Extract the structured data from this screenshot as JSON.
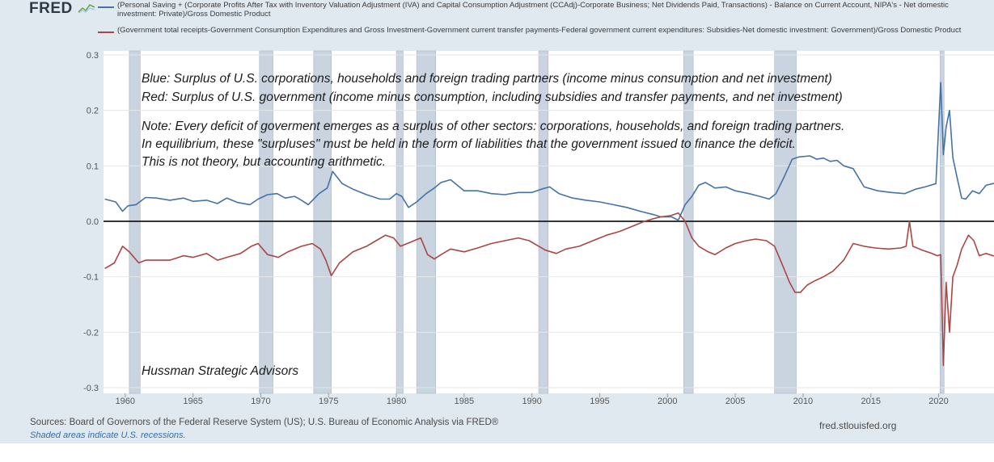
{
  "header": {
    "logo_text": "FRED",
    "logo_icon": "chart-mark-icon"
  },
  "legend": [
    {
      "color": "#4572a7",
      "text": "(Personal Saving + (Corporate Profits After Tax with Inventory Valuation Adjustment (IVA) and Capital Consumption Adjustment (CCAdj)-Corporate Business; Net Dividends Paid, Transactions) - Balance on Current Account, NIPA's - Net domestic investment: Private)/Gross Domestic Product"
    },
    {
      "color": "#aa4643",
      "text": "(Government total receipts-Government Consumption Expenditures and Gross Investment-Government current transfer payments-Federal government current expenditures: Subsidies-Net domestic investment: Government)/Gross Domestic Product"
    }
  ],
  "annotations": {
    "blue_note": "Blue: Surplus of U.S. corporations, households and foreign trading partners (income minus consumption and net investment)",
    "red_note": "Red: Surplus of U.S. government (income minus consumption, including subsidies and transfer payments, and net investment)",
    "note_line1": "Note: Every deficit of goverment emerges as a surplus of other sectors: corporations, households, and foreign trading partners.",
    "note_line2": "In equilibrium, these \"surpluses\" must be held in the form of liabilities that the government issued to finance the deficit.",
    "note_line3": "This is not theory, but accounting arithmetic.",
    "credit": "Hussman Strategic Advisors"
  },
  "footer": {
    "sources": "Sources: Board of Governors of the Federal Reserve System (US); U.S. Bureau of Economic Analysis via FRED®",
    "shaded": "Shaded areas indicate U.S. recessions.",
    "url": "fred.stlouisfed.org"
  },
  "chart_data": {
    "type": "line",
    "xlim": [
      1958.4,
      2024.8
    ],
    "ylim": [
      -0.3,
      0.3
    ],
    "ytick_values": [
      0.3,
      0.2,
      0.1,
      0.0,
      -0.1,
      -0.2,
      -0.3
    ],
    "ytick_labels": [
      "0.3",
      "0.2",
      "0.1",
      "0.0",
      "-0.1",
      "-0.2",
      "-0.3"
    ],
    "xtick_values": [
      1960,
      1965,
      1970,
      1975,
      1980,
      1985,
      1990,
      1995,
      2000,
      2005,
      2010,
      2015,
      2020
    ],
    "xtick_labels": [
      "1960",
      "1965",
      "1970",
      "1975",
      "1980",
      "1985",
      "1990",
      "1995",
      "2000",
      "2005",
      "2010",
      "2015",
      "2020"
    ],
    "zero_line": 0.0,
    "recessions": [
      [
        1960.3,
        1961.1
      ],
      [
        1969.9,
        1970.9
      ],
      [
        1973.9,
        1975.2
      ],
      [
        1980.0,
        1980.5
      ],
      [
        1981.5,
        1982.9
      ],
      [
        1990.5,
        1991.2
      ],
      [
        2001.2,
        2001.9
      ],
      [
        2007.9,
        2009.5
      ],
      [
        2020.1,
        2020.4
      ]
    ],
    "series": [
      {
        "color": "#4572a7",
        "x": [
          1958.5,
          1959.3,
          1959.8,
          1960.2,
          1960.8,
          1961.5,
          1962.3,
          1963.3,
          1964.3,
          1965.0,
          1966.0,
          1966.8,
          1967.5,
          1968.3,
          1969.2,
          1969.8,
          1970.5,
          1971.2,
          1971.8,
          1972.5,
          1973.0,
          1973.5,
          1974.3,
          1974.9,
          1975.3,
          1976.0,
          1976.8,
          1977.8,
          1978.8,
          1979.5,
          1980.0,
          1980.4,
          1980.9,
          1981.5,
          1982.2,
          1982.8,
          1983.3,
          1984.0,
          1985.0,
          1986.0,
          1987.0,
          1988.0,
          1989.0,
          1990.0,
          1990.7,
          1991.3,
          1992.0,
          1993.0,
          1994.0,
          1995.0,
          1996.0,
          1997.0,
          1998.0,
          1999.0,
          1999.5,
          2000.3,
          2000.8,
          2001.3,
          2001.8,
          2002.3,
          2002.8,
          2003.5,
          2004.3,
          2005.0,
          2006.0,
          2006.8,
          2007.5,
          2008.0,
          2008.6,
          2009.2,
          2009.7,
          2010.5,
          2011.0,
          2011.5,
          2012.0,
          2012.5,
          2013.0,
          2013.7,
          2014.5,
          2015.5,
          2016.5,
          2017.5,
          2018.3,
          2019.0,
          2019.8,
          2020.15,
          2020.35,
          2020.55,
          2020.8,
          2021.05,
          2021.35,
          2021.7,
          2022.0,
          2022.5,
          2023.0,
          2023.5,
          2024.0,
          2024.7
        ],
        "y": [
          0.04,
          0.035,
          0.018,
          0.028,
          0.03,
          0.043,
          0.042,
          0.038,
          0.042,
          0.036,
          0.038,
          0.032,
          0.042,
          0.034,
          0.03,
          0.04,
          0.048,
          0.05,
          0.042,
          0.045,
          0.038,
          0.03,
          0.05,
          0.06,
          0.09,
          0.068,
          0.058,
          0.048,
          0.04,
          0.04,
          0.05,
          0.045,
          0.025,
          0.035,
          0.05,
          0.06,
          0.07,
          0.075,
          0.055,
          0.055,
          0.05,
          0.048,
          0.052,
          0.052,
          0.058,
          0.062,
          0.05,
          0.042,
          0.038,
          0.035,
          0.03,
          0.025,
          0.018,
          0.012,
          0.008,
          0.008,
          0.002,
          0.03,
          0.045,
          0.065,
          0.07,
          0.06,
          0.062,
          0.055,
          0.05,
          0.045,
          0.04,
          0.05,
          0.08,
          0.112,
          0.116,
          0.118,
          0.112,
          0.114,
          0.108,
          0.11,
          0.1,
          0.095,
          0.062,
          0.055,
          0.052,
          0.05,
          0.058,
          0.062,
          0.068,
          0.25,
          0.12,
          0.17,
          0.2,
          0.115,
          0.08,
          0.042,
          0.04,
          0.055,
          0.05,
          0.065,
          0.068,
          0.07
        ]
      },
      {
        "color": "#aa4643",
        "x": [
          1958.5,
          1959.2,
          1959.8,
          1960.3,
          1961.0,
          1961.5,
          1962.3,
          1963.3,
          1964.3,
          1965.0,
          1966.0,
          1966.8,
          1967.5,
          1968.5,
          1969.3,
          1969.8,
          1970.5,
          1971.3,
          1972.0,
          1973.0,
          1973.8,
          1974.4,
          1974.8,
          1975.2,
          1975.8,
          1976.8,
          1977.8,
          1978.5,
          1979.2,
          1979.8,
          1980.3,
          1980.8,
          1981.3,
          1981.8,
          1982.3,
          1982.8,
          1983.3,
          1984.0,
          1985.0,
          1986.0,
          1987.0,
          1988.0,
          1989.0,
          1989.8,
          1990.5,
          1991.0,
          1991.8,
          1992.5,
          1993.5,
          1994.5,
          1995.5,
          1996.5,
          1997.5,
          1998.3,
          1999.0,
          1999.5,
          2000.2,
          2000.8,
          2001.3,
          2001.8,
          2002.3,
          2003.0,
          2003.5,
          2004.3,
          2005.0,
          2005.8,
          2006.5,
          2007.3,
          2007.9,
          2008.5,
          2009.0,
          2009.4,
          2009.8,
          2010.3,
          2010.8,
          2011.5,
          2012.2,
          2013.0,
          2013.7,
          2014.5,
          2015.3,
          2016.3,
          2017.2,
          2017.6,
          2017.85,
          2018.1,
          2018.8,
          2019.5,
          2019.9,
          2020.15,
          2020.35,
          2020.55,
          2020.8,
          2021.05,
          2021.35,
          2021.7,
          2022.2,
          2022.6,
          2023.0,
          2023.5,
          2024.0,
          2024.7
        ],
        "y": [
          -0.085,
          -0.075,
          -0.045,
          -0.055,
          -0.075,
          -0.07,
          -0.07,
          -0.07,
          -0.062,
          -0.065,
          -0.058,
          -0.07,
          -0.065,
          -0.058,
          -0.045,
          -0.04,
          -0.06,
          -0.065,
          -0.055,
          -0.045,
          -0.04,
          -0.05,
          -0.07,
          -0.098,
          -0.075,
          -0.055,
          -0.045,
          -0.035,
          -0.025,
          -0.03,
          -0.045,
          -0.04,
          -0.035,
          -0.03,
          -0.06,
          -0.068,
          -0.06,
          -0.05,
          -0.055,
          -0.048,
          -0.04,
          -0.035,
          -0.03,
          -0.035,
          -0.045,
          -0.052,
          -0.058,
          -0.05,
          -0.045,
          -0.035,
          -0.025,
          -0.018,
          -0.008,
          0.0,
          0.005,
          0.008,
          0.01,
          0.015,
          0.0,
          -0.03,
          -0.045,
          -0.055,
          -0.06,
          -0.048,
          -0.04,
          -0.035,
          -0.032,
          -0.035,
          -0.045,
          -0.08,
          -0.11,
          -0.128,
          -0.128,
          -0.115,
          -0.108,
          -0.1,
          -0.09,
          -0.07,
          -0.04,
          -0.045,
          -0.048,
          -0.05,
          -0.048,
          -0.045,
          0.0,
          -0.045,
          -0.052,
          -0.058,
          -0.062,
          -0.06,
          -0.26,
          -0.11,
          -0.2,
          -0.1,
          -0.08,
          -0.05,
          -0.025,
          -0.035,
          -0.062,
          -0.058,
          -0.062,
          -0.065
        ]
      }
    ]
  }
}
